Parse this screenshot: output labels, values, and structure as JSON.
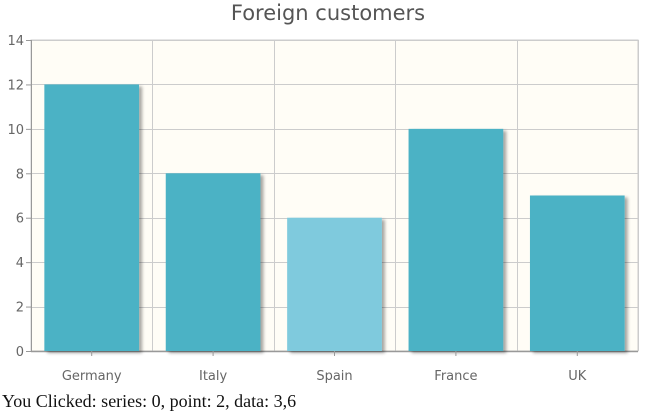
{
  "colors": {
    "bar": "#4bb2c5",
    "bar_highlight": "#7fcadd",
    "grid": "#cccccc",
    "axis": "#999999",
    "text": "#666666",
    "plot_background": "#fffdf6"
  },
  "chart_data": {
    "type": "bar",
    "title": "Foreign customers",
    "categories": [
      "Germany",
      "Italy",
      "Spain",
      "France",
      "UK"
    ],
    "values": [
      12,
      8,
      6,
      10,
      7
    ],
    "ylim": [
      0,
      14
    ],
    "yticks": [
      "0",
      "2",
      "4",
      "6",
      "8",
      "10",
      "12",
      "14"
    ],
    "grid": true,
    "highlighted_index": 2,
    "xlabel": "",
    "ylabel": ""
  },
  "status": {
    "text": "You Clicked: series: 0, point: 2, data: 3,6"
  }
}
